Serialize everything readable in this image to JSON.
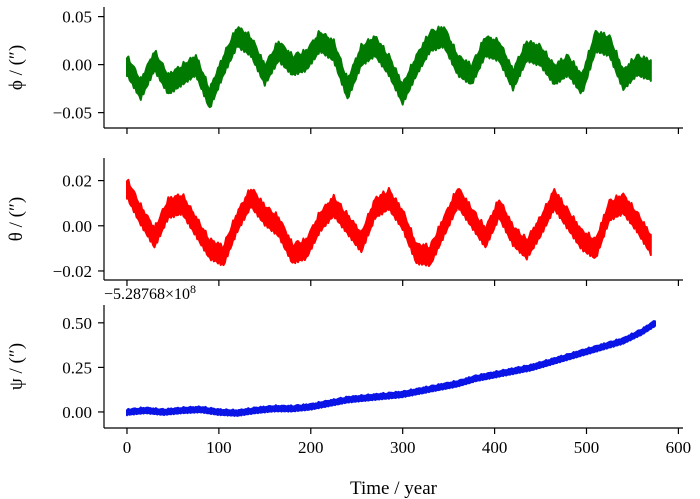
{
  "chart_data": [
    {
      "type": "line",
      "ylabel": "ϕ / (″)",
      "xlim": [
        -25,
        605
      ],
      "ylim": [
        -0.066,
        0.06
      ],
      "yticks": [
        0.05,
        0.0,
        -0.05
      ],
      "ytick_labels": [
        "0.05",
        "0.00",
        "−0.05"
      ],
      "series": [
        {
          "name": "phi",
          "color": "#007a00",
          "band_halfwidth": 0.012,
          "x": [
            0,
            15,
            30,
            45,
            60,
            75,
            90,
            105,
            120,
            135,
            150,
            165,
            180,
            195,
            210,
            225,
            240,
            255,
            270,
            285,
            300,
            315,
            330,
            345,
            360,
            375,
            390,
            405,
            420,
            435,
            450,
            465,
            480,
            495,
            510,
            525,
            540,
            555,
            570
          ],
          "values": [
            0.0,
            -0.025,
            0.005,
            -0.02,
            -0.01,
            0.0,
            -0.035,
            0.0,
            0.03,
            0.02,
            -0.01,
            0.015,
            0.0,
            0.005,
            0.025,
            0.015,
            -0.025,
            0.01,
            0.02,
            0.0,
            -0.03,
            0.0,
            0.025,
            0.03,
            0.0,
            -0.01,
            0.02,
            0.015,
            -0.015,
            0.015,
            0.01,
            -0.01,
            0.0,
            -0.02,
            0.025,
            0.02,
            -0.015,
            0.0,
            -0.005
          ]
        }
      ]
    },
    {
      "type": "line",
      "ylabel": "θ / (″)",
      "xlim": [
        -25,
        605
      ],
      "ylim": [
        -0.024,
        0.03
      ],
      "yticks": [
        0.02,
        0.0,
        -0.02
      ],
      "ytick_labels": [
        "0.02",
        "0.00",
        "−0.02"
      ],
      "series": [
        {
          "name": "theta",
          "color": "#ff0000",
          "band_halfwidth": 0.005,
          "x": [
            0,
            15,
            30,
            45,
            60,
            75,
            90,
            105,
            120,
            135,
            150,
            165,
            180,
            195,
            210,
            225,
            240,
            255,
            270,
            285,
            300,
            315,
            330,
            345,
            360,
            375,
            390,
            405,
            420,
            435,
            450,
            465,
            480,
            495,
            510,
            525,
            540,
            555,
            570
          ],
          "values": [
            0.017,
            0.005,
            -0.005,
            0.008,
            0.01,
            0.0,
            -0.01,
            -0.013,
            0.002,
            0.013,
            0.005,
            0.0,
            -0.012,
            -0.01,
            0.002,
            0.009,
            0.001,
            -0.007,
            0.008,
            0.012,
            0.003,
            -0.012,
            -0.013,
            0.0,
            0.013,
            0.004,
            -0.005,
            0.008,
            -0.004,
            -0.01,
            0.0,
            0.012,
            0.003,
            -0.006,
            -0.01,
            0.007,
            0.01,
            0.002,
            -0.008
          ]
        }
      ]
    },
    {
      "type": "line",
      "ylabel": "ψ / (″)",
      "offset_label": "−5.28768×10",
      "offset_exponent": "8",
      "xlabel": "Time / year",
      "xlim": [
        -25,
        605
      ],
      "ylim": [
        -0.09,
        0.6
      ],
      "yticks": [
        0.5,
        0.25,
        0.0
      ],
      "ytick_labels": [
        "0.50",
        "0.25",
        "0.00"
      ],
      "xticks": [
        0,
        100,
        200,
        300,
        400,
        500,
        600
      ],
      "xtick_labels": [
        "0",
        "100",
        "200",
        "300",
        "400",
        "500",
        "600"
      ],
      "series": [
        {
          "name": "psi",
          "color": "#0a14e6",
          "band_halfwidth": 0.018,
          "x": [
            0,
            20,
            40,
            60,
            80,
            100,
            120,
            140,
            160,
            180,
            200,
            220,
            240,
            260,
            280,
            300,
            320,
            340,
            360,
            380,
            400,
            420,
            440,
            460,
            480,
            500,
            520,
            540,
            560,
            575
          ],
          "values": [
            0.0,
            0.01,
            0.0,
            0.01,
            0.015,
            0.0,
            -0.005,
            0.01,
            0.02,
            0.02,
            0.03,
            0.05,
            0.07,
            0.08,
            0.09,
            0.1,
            0.12,
            0.14,
            0.16,
            0.19,
            0.21,
            0.23,
            0.25,
            0.28,
            0.31,
            0.34,
            0.37,
            0.4,
            0.45,
            0.5
          ]
        }
      ]
    }
  ]
}
